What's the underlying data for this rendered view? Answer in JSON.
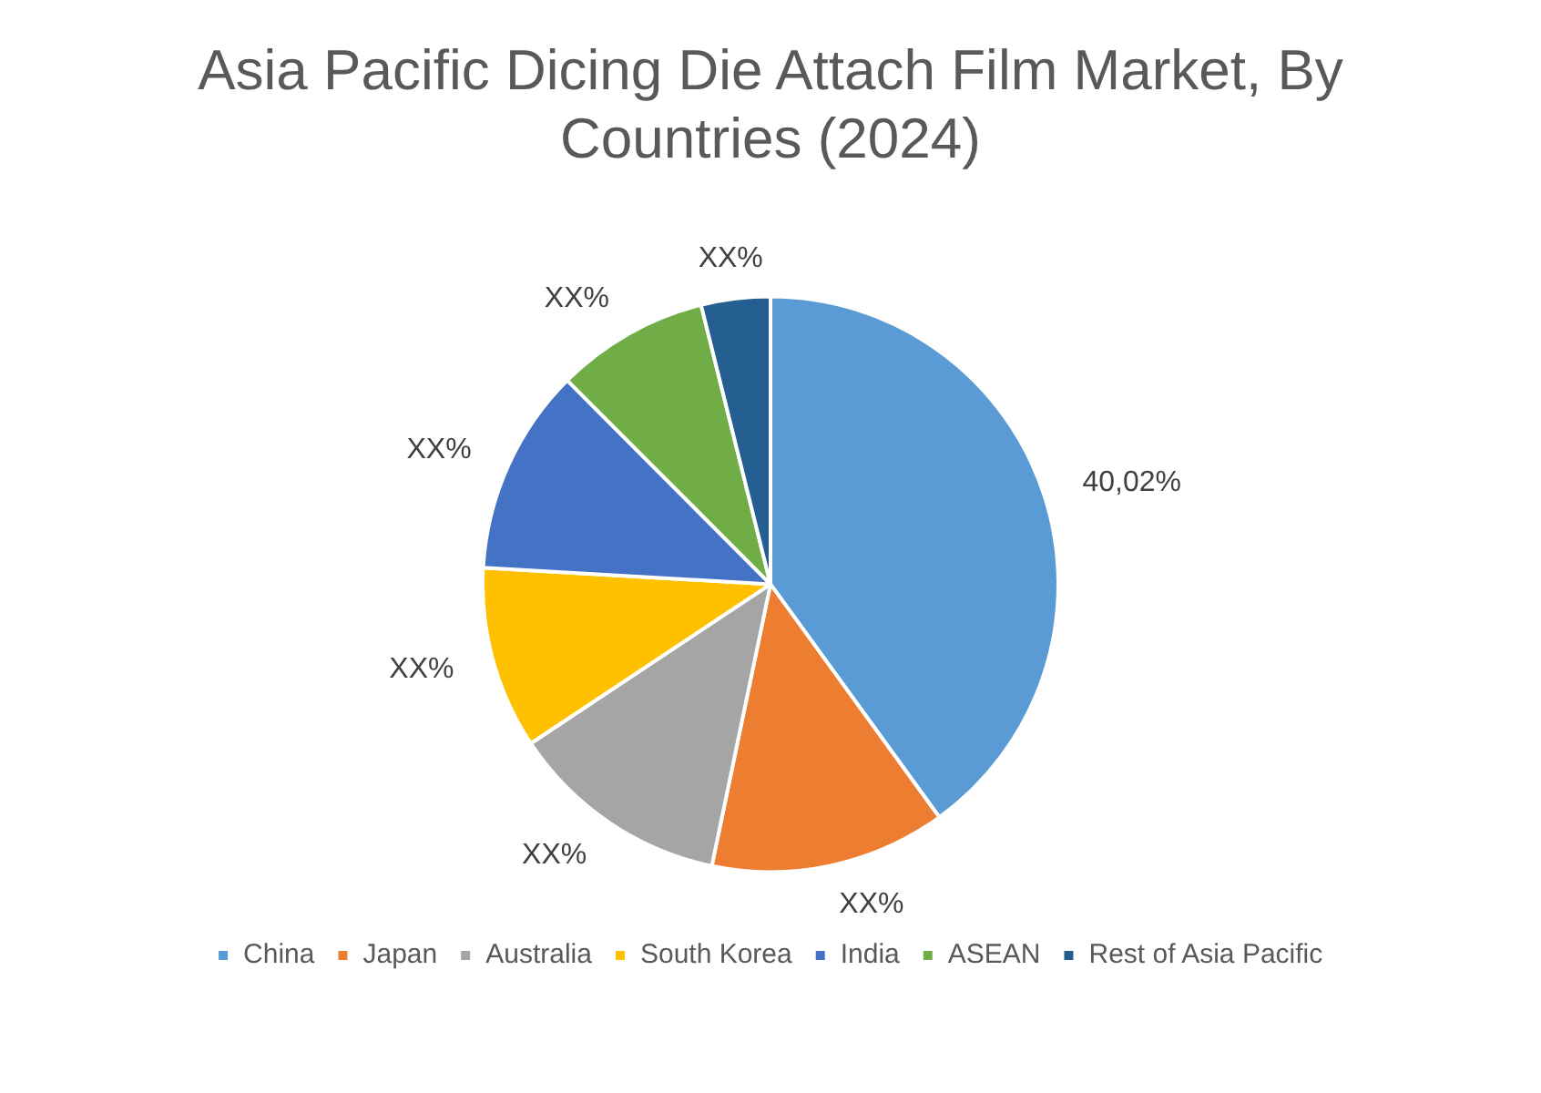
{
  "chart_data": {
    "type": "pie",
    "title": "Asia Pacific Dicing Die Attach Film Market, By Countries (2024)",
    "categories": [
      "China",
      "Japan",
      "Australia",
      "South Korea",
      "India",
      "ASEAN",
      "Rest of Asia Pacific"
    ],
    "values": [
      40.02,
      13.25,
      12.4,
      10.25,
      11.6,
      8.6,
      3.88
    ],
    "value_labels": [
      "40,02%",
      "XX%",
      "XX%",
      "XX%",
      "XX%",
      "XX%",
      "XX%"
    ],
    "colors": [
      "#5b9bd5",
      "#ed7d31",
      "#a5a5a5",
      "#ffc000",
      "#4472c4",
      "#70ad47",
      "#255e91"
    ],
    "legend": "bottom"
  }
}
